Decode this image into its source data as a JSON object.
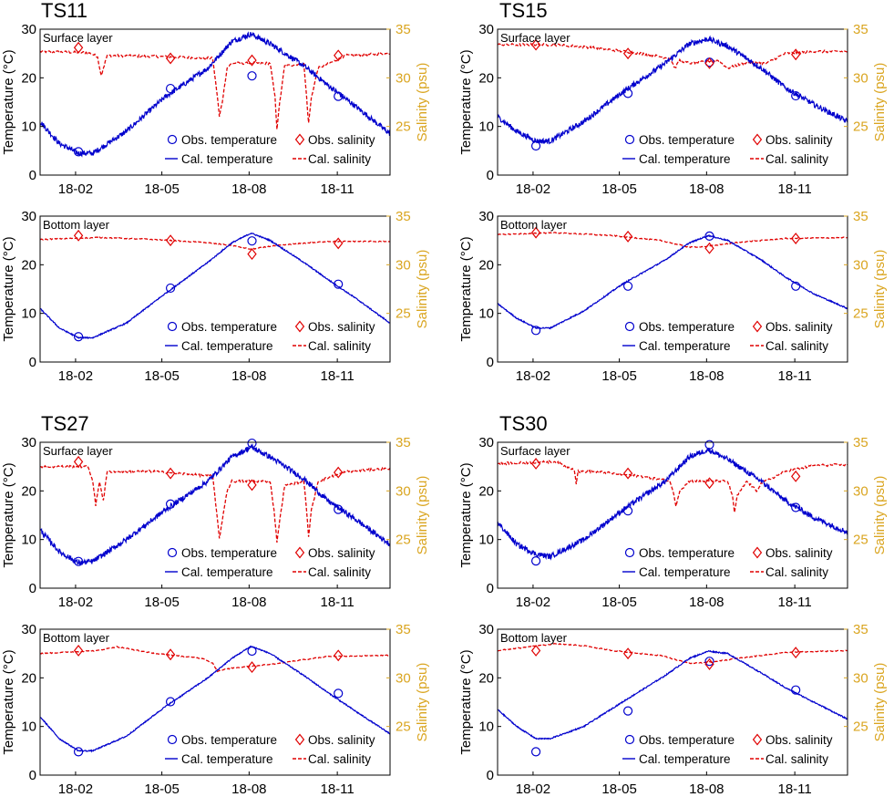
{
  "figure": {
    "y_left_label": "Temperature (°C)",
    "y_right_label": "Salinity (psu)",
    "x_ticks": [
      "18-02",
      "18-05",
      "18-08",
      "18-11"
    ],
    "legend": {
      "obs_temperature": "Obs. temperature",
      "obs_salinity": "Obs. salinity",
      "cal_temperature": "Cal. temperature",
      "cal_salinity": "Cal. salinity"
    },
    "colors": {
      "temperature": "#0000CD",
      "salinity": "#E00000",
      "salinity_axis": "#DAA520"
    }
  },
  "chart_data": [
    {
      "type": "line",
      "station": "TS11",
      "layer": "Surface layer",
      "xlim": [
        0,
        365
      ],
      "x_tick_days": [
        37,
        127,
        218,
        310
      ],
      "ylim_temperature": [
        0,
        30
      ],
      "ylim_salinity": [
        20,
        35
      ],
      "yticks_temperature": [
        0,
        10,
        20,
        30
      ],
      "yticks_salinity": [
        25,
        30,
        35
      ],
      "cal_temperature": {
        "x": [
          0,
          20,
          40,
          55,
          90,
          130,
          175,
          200,
          220,
          240,
          275,
          300,
          330,
          365
        ],
        "y": [
          11,
          6.5,
          4.5,
          4.5,
          9,
          16,
          22,
          27.5,
          29,
          27,
          22.5,
          18.5,
          14,
          8.5
        ]
      },
      "cal_salinity": {
        "x": [
          0,
          50,
          60,
          62,
          64,
          66,
          70,
          120,
          180,
          185,
          187,
          190,
          195,
          200,
          240,
          245,
          247,
          250,
          255,
          275,
          278,
          280,
          283,
          290,
          320,
          365
        ],
        "y": [
          32.7,
          32.6,
          32.2,
          31,
          30.3,
          31,
          32.3,
          32.2,
          32,
          28,
          26,
          27.5,
          31,
          31.5,
          31.5,
          28,
          24.8,
          27.5,
          31.2,
          31.5,
          28,
          25.3,
          28,
          31,
          32.3,
          32.5
        ]
      },
      "obs_temperature": {
        "x": [
          40,
          136,
          221,
          311
        ],
        "y": [
          4.8,
          17.8,
          20.4,
          16.2
        ]
      },
      "obs_salinity": {
        "x": [
          40,
          136,
          221,
          311
        ],
        "y": [
          33.1,
          32,
          31.8,
          32.3
        ]
      }
    },
    {
      "type": "line",
      "station": "TS15",
      "layer": "Surface layer",
      "xlim": [
        0,
        365
      ],
      "x_tick_days": [
        37,
        127,
        218,
        310
      ],
      "ylim_temperature": [
        0,
        30
      ],
      "ylim_salinity": [
        20,
        35
      ],
      "yticks_temperature": [
        0,
        10,
        20,
        30
      ],
      "yticks_salinity": [
        25,
        30,
        35
      ],
      "cal_temperature": {
        "x": [
          0,
          20,
          40,
          55,
          90,
          130,
          175,
          200,
          220,
          240,
          275,
          300,
          330,
          365
        ],
        "y": [
          12,
          9,
          7,
          7,
          11,
          17,
          23,
          27,
          28,
          26.5,
          22,
          18,
          14.5,
          11
        ]
      },
      "cal_salinity": {
        "x": [
          0,
          60,
          100,
          150,
          180,
          185,
          190,
          200,
          230,
          240,
          260,
          280,
          290,
          300,
          330,
          365
        ],
        "y": [
          33.4,
          33.4,
          33.1,
          32.5,
          32,
          31,
          31.8,
          31.5,
          31.8,
          31,
          31.6,
          31.5,
          32,
          32.5,
          32.7,
          32.7
        ]
      },
      "obs_temperature": {
        "x": [
          40,
          136,
          221,
          311
        ],
        "y": [
          6,
          16.8,
          23.2,
          16.3
        ]
      },
      "obs_salinity": {
        "x": [
          40,
          136,
          221,
          311
        ],
        "y": [
          33.4,
          32.5,
          31.5,
          32.4
        ]
      }
    },
    {
      "type": "line",
      "station": "TS11",
      "layer": "Bottom layer",
      "xlim": [
        0,
        365
      ],
      "x_tick_days": [
        37,
        127,
        218,
        310
      ],
      "ylim_temperature": [
        0,
        30
      ],
      "ylim_salinity": [
        20,
        35
      ],
      "yticks_temperature": [
        0,
        10,
        20,
        30
      ],
      "yticks_salinity": [
        25,
        30,
        35
      ],
      "cal_temperature": {
        "x": [
          0,
          20,
          40,
          55,
          90,
          130,
          175,
          200,
          220,
          240,
          275,
          300,
          330,
          365
        ],
        "y": [
          11,
          7,
          5,
          5,
          8,
          14,
          20.5,
          24.5,
          26.5,
          25,
          20.5,
          17,
          13,
          8
        ]
      },
      "cal_salinity": {
        "x": [
          0,
          60,
          120,
          170,
          200,
          220,
          240,
          260,
          300,
          365
        ],
        "y": [
          32.6,
          32.8,
          32.6,
          32.3,
          32,
          31.6,
          31.9,
          32.1,
          32.4,
          32.4
        ]
      },
      "obs_temperature": {
        "x": [
          40,
          136,
          221,
          311
        ],
        "y": [
          5.2,
          15.2,
          24.9,
          16
        ]
      },
      "obs_salinity": {
        "x": [
          40,
          136,
          221,
          311
        ],
        "y": [
          33,
          32.5,
          31.1,
          32.2
        ]
      }
    },
    {
      "type": "line",
      "station": "TS15",
      "layer": "Bottom layer",
      "xlim": [
        0,
        365
      ],
      "x_tick_days": [
        37,
        127,
        218,
        310
      ],
      "ylim_temperature": [
        0,
        30
      ],
      "ylim_salinity": [
        20,
        35
      ],
      "yticks_temperature": [
        0,
        10,
        20,
        30
      ],
      "yticks_salinity": [
        25,
        30,
        35
      ],
      "cal_temperature": {
        "x": [
          0,
          20,
          40,
          55,
          90,
          130,
          175,
          200,
          220,
          240,
          275,
          300,
          330,
          365
        ],
        "y": [
          12,
          9,
          7,
          7,
          10.5,
          16,
          21,
          24.5,
          26,
          25,
          21,
          17.5,
          14,
          11
        ]
      },
      "cal_salinity": {
        "x": [
          0,
          60,
          120,
          170,
          200,
          220,
          250,
          300,
          365
        ],
        "y": [
          33.1,
          33.3,
          33,
          32.5,
          31.8,
          31.9,
          32.3,
          32.7,
          32.8
        ]
      },
      "obs_temperature": {
        "x": [
          40,
          136,
          221,
          311
        ],
        "y": [
          6.5,
          15.6,
          25.9,
          15.6
        ]
      },
      "obs_salinity": {
        "x": [
          40,
          136,
          221,
          311
        ],
        "y": [
          33.3,
          32.9,
          31.7,
          32.7
        ]
      }
    },
    {
      "type": "line",
      "station": "TS27",
      "layer": "Surface layer",
      "xlim": [
        0,
        365
      ],
      "x_tick_days": [
        37,
        127,
        218,
        310
      ],
      "ylim_temperature": [
        0,
        30
      ],
      "ylim_salinity": [
        20,
        35
      ],
      "yticks_temperature": [
        0,
        10,
        20,
        30
      ],
      "yticks_salinity": [
        25,
        30,
        35
      ],
      "cal_temperature": {
        "x": [
          0,
          20,
          40,
          55,
          90,
          130,
          175,
          200,
          220,
          240,
          275,
          300,
          330,
          365
        ],
        "y": [
          12,
          7.5,
          5.2,
          5.5,
          10,
          16,
          22,
          27,
          29,
          27,
          22.5,
          18,
          14,
          9
        ]
      },
      "cal_salinity": {
        "x": [
          0,
          50,
          55,
          58,
          62,
          66,
          70,
          120,
          180,
          184,
          187,
          190,
          195,
          200,
          240,
          244,
          247,
          250,
          255,
          275,
          278,
          280,
          283,
          290,
          320,
          365
        ],
        "y": [
          32.5,
          32.5,
          31,
          28.5,
          31,
          29,
          32,
          32,
          31.5,
          28,
          25,
          27,
          30,
          31,
          31,
          28,
          24.8,
          27,
          30.5,
          31,
          28,
          25.3,
          28,
          31,
          32,
          32.3
        ]
      },
      "obs_temperature": {
        "x": [
          40,
          136,
          221,
          311
        ],
        "y": [
          5.5,
          17.3,
          29.8,
          16.2
        ]
      },
      "obs_salinity": {
        "x": [
          40,
          136,
          221,
          311
        ],
        "y": [
          33,
          31.8,
          30.6,
          31.9
        ]
      }
    },
    {
      "type": "line",
      "station": "TS30",
      "layer": "Surface layer",
      "xlim": [
        0,
        365
      ],
      "x_tick_days": [
        37,
        127,
        218,
        310
      ],
      "ylim_temperature": [
        0,
        30
      ],
      "ylim_salinity": [
        20,
        35
      ],
      "yticks_temperature": [
        0,
        10,
        20,
        30
      ],
      "yticks_salinity": [
        25,
        30,
        35
      ],
      "cal_temperature": {
        "x": [
          0,
          20,
          40,
          55,
          90,
          130,
          175,
          200,
          220,
          240,
          275,
          300,
          330,
          365
        ],
        "y": [
          13.5,
          9,
          7,
          6.5,
          10,
          16,
          22,
          27,
          28.5,
          26.5,
          22,
          18,
          14.5,
          11.5
        ]
      },
      "cal_salinity": {
        "x": [
          0,
          60,
          80,
          82,
          84,
          100,
          150,
          180,
          184,
          186,
          190,
          200,
          240,
          245,
          247,
          250,
          260,
          270,
          275,
          280,
          300,
          330,
          365
        ],
        "y": [
          32.8,
          33,
          32.2,
          30.8,
          32,
          32,
          31.5,
          31,
          29.5,
          28.5,
          30,
          31,
          31,
          29.5,
          27.7,
          29.5,
          31,
          30,
          30.8,
          31,
          32,
          32.6,
          32.7
        ]
      },
      "obs_temperature": {
        "x": [
          40,
          136,
          221,
          311
        ],
        "y": [
          5.6,
          15.9,
          29.5,
          16.6
        ]
      },
      "obs_salinity": {
        "x": [
          40,
          136,
          221,
          311
        ],
        "y": [
          32.8,
          31.8,
          30.8,
          31.5
        ]
      }
    },
    {
      "type": "line",
      "station": "TS27",
      "layer": "Bottom layer",
      "xlim": [
        0,
        365
      ],
      "x_tick_days": [
        37,
        127,
        218,
        310
      ],
      "ylim_temperature": [
        0,
        30
      ],
      "ylim_salinity": [
        20,
        35
      ],
      "yticks_temperature": [
        0,
        10,
        20,
        30
      ],
      "yticks_salinity": [
        25,
        30,
        35
      ],
      "cal_temperature": {
        "x": [
          0,
          20,
          40,
          55,
          90,
          130,
          175,
          200,
          220,
          240,
          275,
          300,
          330,
          365
        ],
        "y": [
          12,
          7.5,
          5,
          5,
          8,
          14,
          20,
          24,
          26.5,
          25,
          20.5,
          17,
          13,
          8.5
        ]
      },
      "cal_salinity": {
        "x": [
          0,
          60,
          80,
          120,
          170,
          180,
          185,
          200,
          220,
          250,
          270,
          300,
          365
        ],
        "y": [
          32.5,
          32.8,
          33.2,
          32.5,
          32,
          31.5,
          30.7,
          31,
          31.2,
          31.5,
          31.8,
          32.2,
          32.3
        ]
      },
      "obs_temperature": {
        "x": [
          40,
          136,
          221,
          311
        ],
        "y": [
          4.8,
          15.1,
          25.5,
          16.8
        ]
      },
      "obs_salinity": {
        "x": [
          40,
          136,
          221,
          311
        ],
        "y": [
          32.8,
          32.4,
          31.1,
          32.3
        ]
      }
    },
    {
      "type": "line",
      "station": "TS30",
      "layer": "Bottom layer",
      "xlim": [
        0,
        365
      ],
      "x_tick_days": [
        37,
        127,
        218,
        310
      ],
      "ylim_temperature": [
        0,
        30
      ],
      "ylim_salinity": [
        20,
        35
      ],
      "yticks_temperature": [
        0,
        10,
        20,
        30
      ],
      "yticks_salinity": [
        25,
        30,
        35
      ],
      "cal_temperature": {
        "x": [
          0,
          20,
          40,
          55,
          90,
          130,
          175,
          200,
          220,
          240,
          275,
          300,
          330,
          365
        ],
        "y": [
          13.5,
          10,
          7.5,
          7.5,
          10,
          15,
          20.5,
          24,
          25.5,
          25,
          21,
          18,
          15,
          11.5
        ]
      },
      "cal_salinity": {
        "x": [
          0,
          60,
          90,
          120,
          170,
          200,
          220,
          250,
          300,
          365
        ],
        "y": [
          32.8,
          33.5,
          33.3,
          32.8,
          32.3,
          31.5,
          31.6,
          32,
          32.6,
          32.8
        ]
      },
      "obs_temperature": {
        "x": [
          40,
          136,
          221,
          311
        ],
        "y": [
          4.8,
          13.2,
          23.4,
          17.5
        ]
      },
      "obs_salinity": {
        "x": [
          40,
          136,
          221,
          311
        ],
        "y": [
          32.8,
          32.5,
          31.4,
          32.6
        ]
      }
    }
  ]
}
